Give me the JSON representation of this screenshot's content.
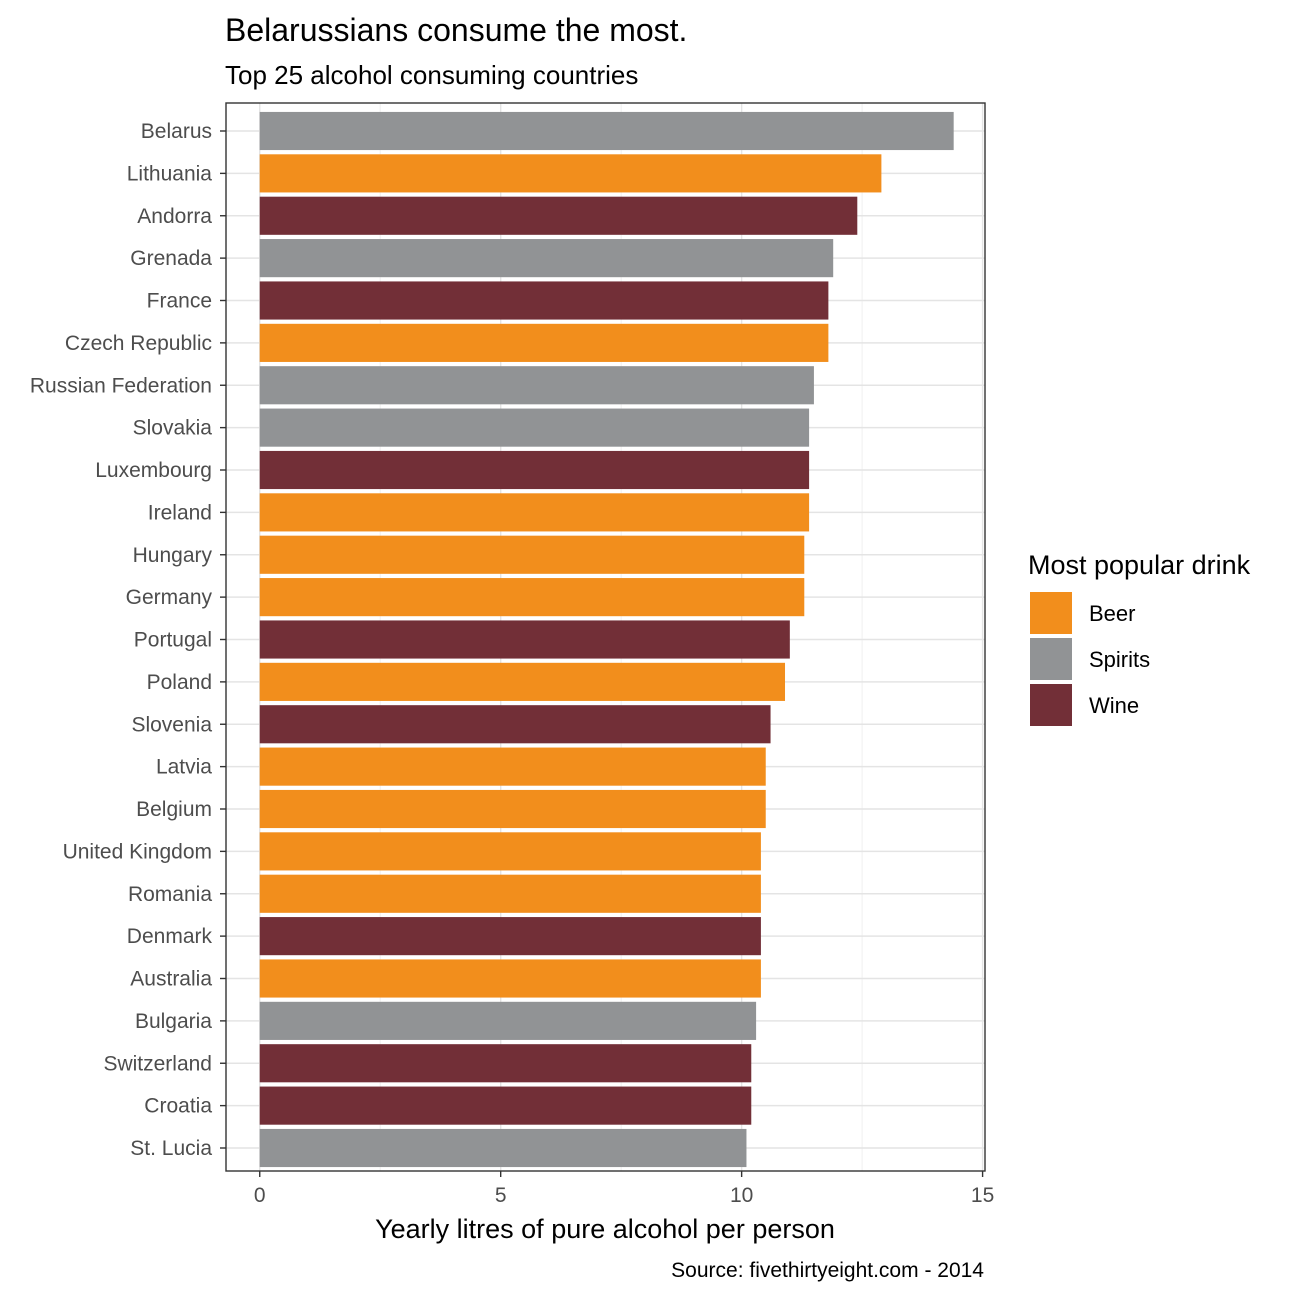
{
  "chart_data": {
    "type": "bar",
    "orientation": "horizontal",
    "title": "Belarussians consume the most.",
    "subtitle": "Top 25 alcohol consuming countries",
    "xlabel": "Yearly litres of pure alcohol per person",
    "caption": "Source: fivethirtyeight.com - 2014",
    "xlim": [
      -0.7,
      15.05
    ],
    "xticks": [
      0,
      5,
      10,
      15
    ],
    "grid": true,
    "legend": {
      "title": "Most popular drink",
      "placement": "right",
      "entries": [
        {
          "label": "Beer",
          "color": "#F28E1C"
        },
        {
          "label": "Spirits",
          "color": "#919395"
        },
        {
          "label": "Wine",
          "color": "#722F37"
        }
      ]
    },
    "categories": [
      "Belarus",
      "Lithuania",
      "Andorra",
      "Grenada",
      "France",
      "Czech Republic",
      "Russian Federation",
      "Slovakia",
      "Luxembourg",
      "Ireland",
      "Hungary",
      "Germany",
      "Portugal",
      "Poland",
      "Slovenia",
      "Latvia",
      "Belgium",
      "United Kingdom",
      "Romania",
      "Denmark",
      "Australia",
      "Bulgaria",
      "Switzerland",
      "Croatia",
      "St. Lucia"
    ],
    "values": [
      14.4,
      12.9,
      12.4,
      11.9,
      11.8,
      11.8,
      11.5,
      11.4,
      11.4,
      11.4,
      11.3,
      11.3,
      11.0,
      10.9,
      10.6,
      10.5,
      10.5,
      10.4,
      10.4,
      10.4,
      10.4,
      10.3,
      10.2,
      10.2,
      10.1
    ],
    "drink": [
      "Spirits",
      "Beer",
      "Wine",
      "Spirits",
      "Wine",
      "Beer",
      "Spirits",
      "Spirits",
      "Wine",
      "Beer",
      "Beer",
      "Beer",
      "Wine",
      "Beer",
      "Wine",
      "Beer",
      "Beer",
      "Beer",
      "Beer",
      "Wine",
      "Beer",
      "Spirits",
      "Wine",
      "Wine",
      "Spirits"
    ]
  }
}
